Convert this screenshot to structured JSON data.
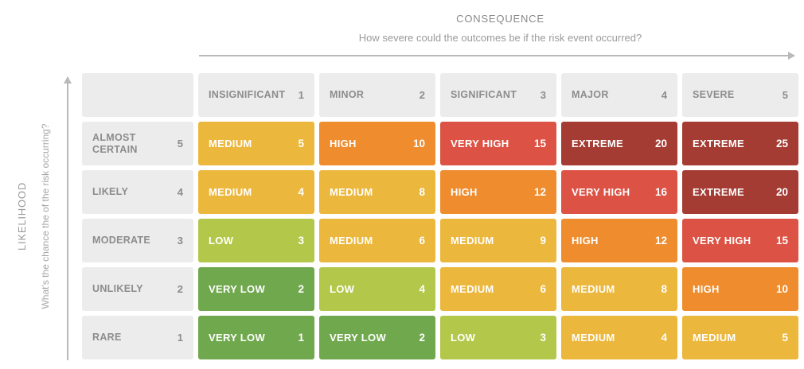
{
  "consequence_axis": {
    "title": "CONSEQUENCE",
    "subtitle": "How severe could the outcomes be if the risk event occurred?"
  },
  "likelihood_axis": {
    "title": "LIKELIHOOD",
    "subtitle": "What's the chance the of the risk occurring?"
  },
  "colors": {
    "header_bg": "#ececec",
    "header_text": "#8c8c8c",
    "very_low": "#70a84d",
    "low": "#b3c84a",
    "medium": "#ecb73d",
    "high": "#ee8c2e",
    "very_high": "#dc5244",
    "extreme": "#a43c33",
    "arrow": "#b9b9b9"
  },
  "columns": [
    {
      "label": "INSIGNIFICANT",
      "value": 1
    },
    {
      "label": "MINOR",
      "value": 2
    },
    {
      "label": "SIGNIFICANT",
      "value": 3
    },
    {
      "label": "MAJOR",
      "value": 4
    },
    {
      "label": "SEVERE",
      "value": 5
    }
  ],
  "rows": [
    {
      "label": "ALMOST CERTAIN",
      "value": 5,
      "cells": [
        {
          "label": "MEDIUM",
          "score": 5,
          "level": "medium"
        },
        {
          "label": "HIGH",
          "score": 10,
          "level": "high"
        },
        {
          "label": "VERY HIGH",
          "score": 15,
          "level": "very_high"
        },
        {
          "label": "EXTREME",
          "score": 20,
          "level": "extreme"
        },
        {
          "label": "EXTREME",
          "score": 25,
          "level": "extreme"
        }
      ]
    },
    {
      "label": "LIKELY",
      "value": 4,
      "cells": [
        {
          "label": "MEDIUM",
          "score": 4,
          "level": "medium"
        },
        {
          "label": "MEDIUM",
          "score": 8,
          "level": "medium"
        },
        {
          "label": "HIGH",
          "score": 12,
          "level": "high"
        },
        {
          "label": "VERY HIGH",
          "score": 16,
          "level": "very_high"
        },
        {
          "label": "EXTREME",
          "score": 20,
          "level": "extreme"
        }
      ]
    },
    {
      "label": "MODERATE",
      "value": 3,
      "cells": [
        {
          "label": "LOW",
          "score": 3,
          "level": "low"
        },
        {
          "label": "MEDIUM",
          "score": 6,
          "level": "medium"
        },
        {
          "label": "MEDIUM",
          "score": 9,
          "level": "medium"
        },
        {
          "label": "HIGH",
          "score": 12,
          "level": "high"
        },
        {
          "label": "VERY HIGH",
          "score": 15,
          "level": "very_high"
        }
      ]
    },
    {
      "label": "UNLIKELY",
      "value": 2,
      "cells": [
        {
          "label": "VERY LOW",
          "score": 2,
          "level": "very_low"
        },
        {
          "label": "LOW",
          "score": 4,
          "level": "low"
        },
        {
          "label": "MEDIUM",
          "score": 6,
          "level": "medium"
        },
        {
          "label": "MEDIUM",
          "score": 8,
          "level": "medium"
        },
        {
          "label": "HIGH",
          "score": 10,
          "level": "high"
        }
      ]
    },
    {
      "label": "RARE",
      "value": 1,
      "cells": [
        {
          "label": "VERY LOW",
          "score": 1,
          "level": "very_low"
        },
        {
          "label": "VERY LOW",
          "score": 2,
          "level": "very_low"
        },
        {
          "label": "LOW",
          "score": 3,
          "level": "low"
        },
        {
          "label": "MEDIUM",
          "score": 4,
          "level": "medium"
        },
        {
          "label": "MEDIUM",
          "score": 5,
          "level": "medium"
        }
      ]
    }
  ],
  "chart_data": {
    "type": "heatmap",
    "title": "Risk assessment matrix",
    "xlabel": "CONSEQUENCE — How severe could the outcomes be if the risk event occurred?",
    "ylabel": "LIKELIHOOD — What's the chance the of the risk occurring?",
    "x_categories": [
      "INSIGNIFICANT 1",
      "MINOR 2",
      "SIGNIFICANT 3",
      "MAJOR 4",
      "SEVERE 5"
    ],
    "y_categories": [
      "ALMOST CERTAIN 5",
      "LIKELY 4",
      "MODERATE 3",
      "UNLIKELY 2",
      "RARE 1"
    ],
    "values": [
      [
        5,
        10,
        15,
        20,
        25
      ],
      [
        4,
        8,
        12,
        16,
        20
      ],
      [
        3,
        6,
        9,
        12,
        15
      ],
      [
        2,
        4,
        6,
        8,
        10
      ],
      [
        1,
        2,
        3,
        4,
        5
      ]
    ],
    "labels": [
      [
        "MEDIUM",
        "HIGH",
        "VERY HIGH",
        "EXTREME",
        "EXTREME"
      ],
      [
        "MEDIUM",
        "MEDIUM",
        "HIGH",
        "VERY HIGH",
        "EXTREME"
      ],
      [
        "LOW",
        "MEDIUM",
        "MEDIUM",
        "HIGH",
        "VERY HIGH"
      ],
      [
        "VERY LOW",
        "LOW",
        "MEDIUM",
        "MEDIUM",
        "HIGH"
      ],
      [
        "VERY LOW",
        "VERY LOW",
        "LOW",
        "MEDIUM",
        "MEDIUM"
      ]
    ],
    "legend_position": "none",
    "grid": false
  }
}
